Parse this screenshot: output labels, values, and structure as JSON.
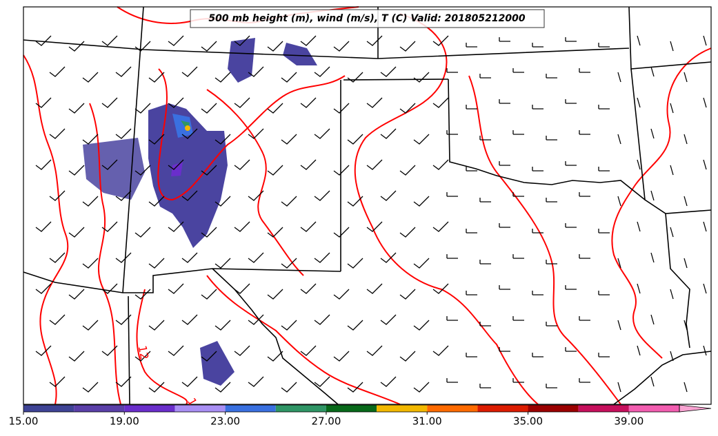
{
  "map": {
    "title": "500 mb height (m), wind (m/s), T (C) Valid: 201805212000",
    "contour_labels": [
      "12",
      "1"
    ],
    "colorbar": {
      "bounds": [
        15,
        17,
        19,
        21,
        23,
        25,
        27,
        29,
        31,
        33,
        35,
        37,
        39,
        41
      ],
      "colors": [
        "#3e4395",
        "#5a3fa8",
        "#6a2ecb",
        "#a98ff4",
        "#3a70e0",
        "#2f9565",
        "#08691a",
        "#f2b800",
        "#ff6b00",
        "#dc1c00",
        "#9b0000",
        "#c60f5c",
        "#f25db0"
      ],
      "extend_color": "#f9a3d2",
      "ticks": [
        {
          "value": 15,
          "label": "15.00"
        },
        {
          "value": 19,
          "label": "19.00"
        },
        {
          "value": 23,
          "label": "23.00"
        },
        {
          "value": 27,
          "label": "27.00"
        },
        {
          "value": 31,
          "label": "31.00"
        },
        {
          "value": 35,
          "label": "35.00"
        },
        {
          "value": 39,
          "label": "39.00"
        }
      ]
    }
  }
}
